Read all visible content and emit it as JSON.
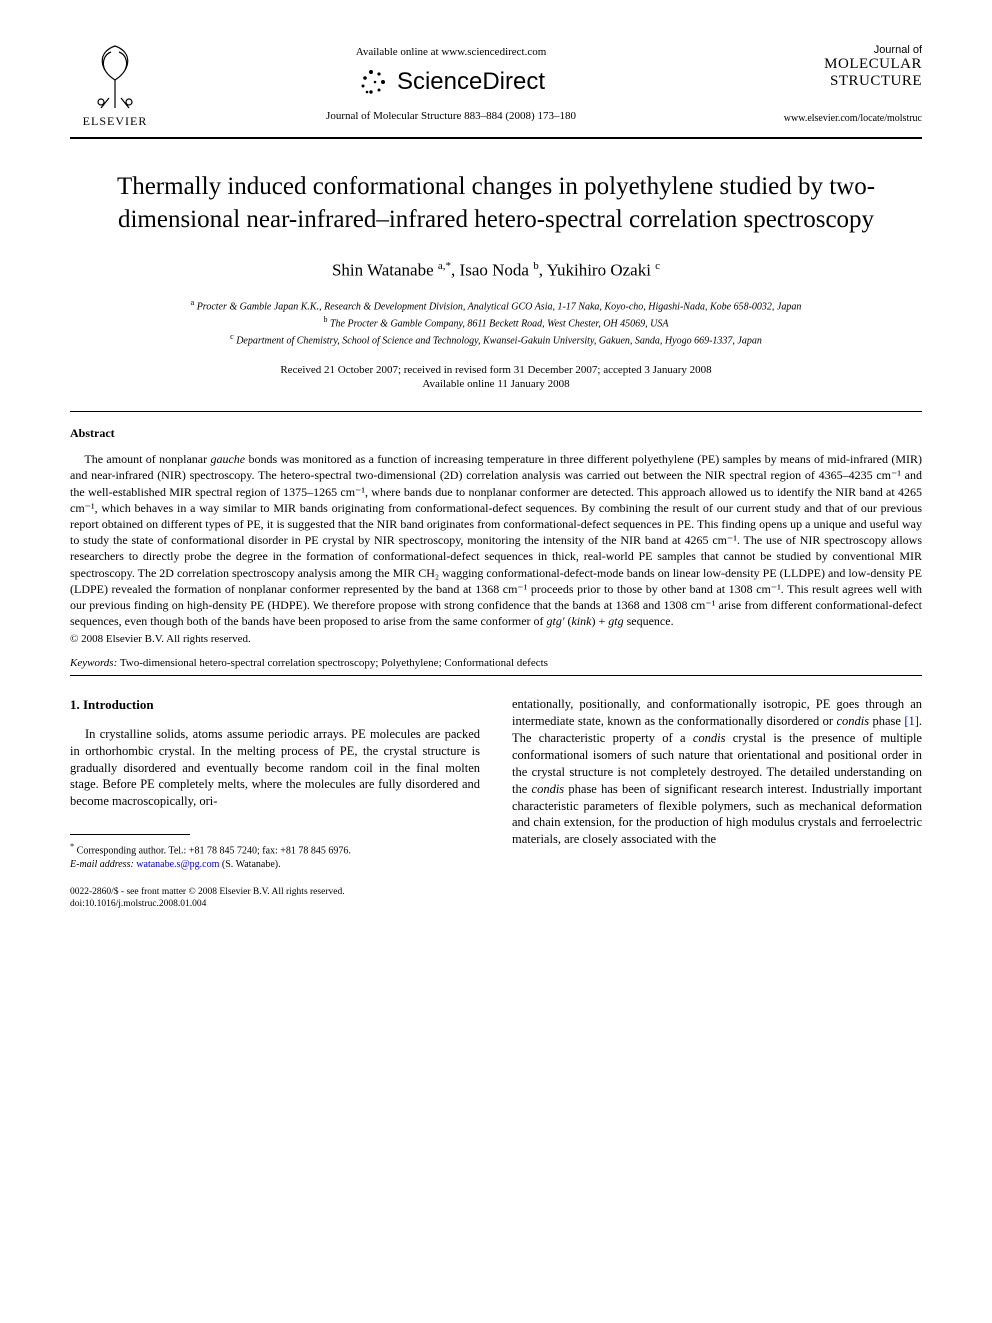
{
  "header": {
    "elsevier_label": "ELSEVIER",
    "available_text": "Available online at www.sciencedirect.com",
    "sciencedirect_text": "ScienceDirect",
    "citation": "Journal of Molecular Structure 883–884 (2008) 173–180",
    "journal_of": "Journal of",
    "journal_name_line1": "MOLECULAR",
    "journal_name_line2": "STRUCTURE",
    "journal_url": "www.elsevier.com/locate/molstruc"
  },
  "title": "Thermally induced conformational changes in polyethylene studied by two-dimensional near-infrared–infrared hetero-spectral correlation spectroscopy",
  "authors_html": "Shin Watanabe <sup>a,*</sup>, Isao Noda <sup>b</sup>, Yukihiro Ozaki <sup>c</sup>",
  "affiliations": {
    "a": "Procter & Gamble Japan K.K., Research & Development Division, Analytical GCO Asia, 1-17 Naka, Koyo-cho, Higashi-Nada, Kobe 658-0032, Japan",
    "b": "The Procter & Gamble Company, 8611 Beckett Road, West Chester, OH 45069, USA",
    "c": "Department of Chemistry, School of Science and Technology, Kwansei-Gakuin University, Gakuen, Sanda, Hyogo 669-1337, Japan"
  },
  "dates": {
    "received": "Received 21 October 2007; received in revised form 31 December 2007; accepted 3 January 2008",
    "online": "Available online 11 January 2008"
  },
  "abstract": {
    "heading": "Abstract",
    "body": "The amount of nonplanar gauche bonds was monitored as a function of increasing temperature in three different polyethylene (PE) samples by means of mid-infrared (MIR) and near-infrared (NIR) spectroscopy. The hetero-spectral two-dimensional (2D) correlation analysis was carried out between the NIR spectral region of 4365–4235 cm⁻¹ and the well-established MIR spectral region of 1375–1265 cm⁻¹, where bands due to nonplanar conformer are detected. This approach allowed us to identify the NIR band at 4265 cm⁻¹, which behaves in a way similar to MIR bands originating from conformational-defect sequences. By combining the result of our current study and that of our previous report obtained on different types of PE, it is suggested that the NIR band originates from conformational-defect sequences in PE. This finding opens up a unique and useful way to study the state of conformational disorder in PE crystal by NIR spectroscopy, monitoring the intensity of the NIR band at 4265 cm⁻¹. The use of NIR spectroscopy allows researchers to directly probe the degree in the formation of conformational-defect sequences in thick, real-world PE samples that cannot be studied by conventional MIR spectroscopy. The 2D correlation spectroscopy analysis among the MIR CH₂ wagging conformational-defect-mode bands on linear low-density PE (LLDPE) and low-density PE (LDPE) revealed the formation of nonplanar conformer represented by the band at 1368 cm⁻¹ proceeds prior to those by other band at 1308 cm⁻¹. This result agrees well with our previous finding on high-density PE (HDPE). We therefore propose with strong confidence that the bands at 1368 and 1308 cm⁻¹ arise from different conformational-defect sequences, even though both of the bands have been proposed to arise from the same conformer of gtg′ (kink) + gtg sequence.",
    "copyright": "© 2008 Elsevier B.V. All rights reserved."
  },
  "keywords": {
    "label": "Keywords:",
    "text": "Two-dimensional hetero-spectral correlation spectroscopy; Polyethylene; Conformational defects"
  },
  "intro": {
    "heading": "1. Introduction",
    "col1": "In crystalline solids, atoms assume periodic arrays. PE molecules are packed in orthorhombic crystal. In the melting process of PE, the crystal structure is gradually disordered and eventually become random coil in the final molten stage. Before PE completely melts, where the molecules are fully disordered and become macroscopically, ori-",
    "col2": "entationally, positionally, and conformationally isotropic, PE goes through an intermediate state, known as the conformationally disordered or condis phase [1]. The characteristic property of a condis crystal is the presence of multiple conformational isomers of such nature that orientational and positional order in the crystal structure is not completely destroyed. The detailed understanding on the condis phase has been of significant research interest. Industrially important characteristic parameters of flexible polymers, such as mechanical deformation and chain extension, for the production of high modulus crystals and ferroelectric materials, are closely associated with the"
  },
  "footnote": {
    "corr": "Corresponding author. Tel.: +81 78 845 7240; fax: +81 78 845 6976.",
    "email_label": "E-mail address:",
    "email": "watanabe.s@pg.com",
    "email_trail": "(S. Watanabe)."
  },
  "footer": {
    "line1": "0022-2860/$ - see front matter © 2008 Elsevier B.V. All rights reserved.",
    "line2": "doi:10.1016/j.molstruc.2008.01.004"
  },
  "colors": {
    "text": "#000000",
    "link": "#0000cc",
    "background": "#ffffff"
  }
}
